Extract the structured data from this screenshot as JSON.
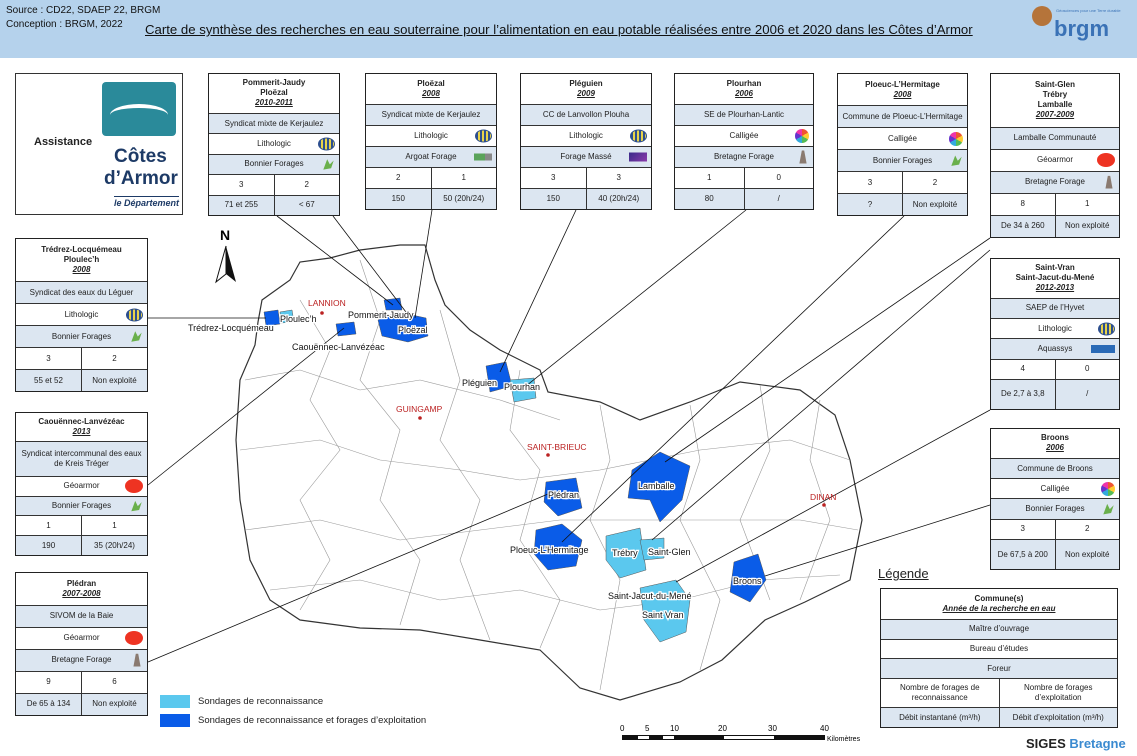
{
  "header": {
    "source": "Source : CD22, SDAEP 22, BRGM",
    "conception": "Conception : BRGM, 2022",
    "title": "Carte de synthèse des recherches en eau souterraine pour l’alimentation en eau potable réalisées entre 2006 et 2020 dans les Côtes d’Armor",
    "brgm_logo": "brgm",
    "brgm_tagline": "Géosciences pour une Terre durable"
  },
  "logo": {
    "assistance": "Assistance",
    "line1": "Côtes",
    "line2": "d’Armor",
    "line3": "le Département"
  },
  "boxes": [
    {
      "title": [
        "Pommerit-Jaudy",
        "Ploëzal"
      ],
      "year": "2010-2011",
      "owner": "Syndicat mixte de Kerjaulez",
      "consultant": "Lithologic",
      "consultant_icon": "globe",
      "driller": "Bonnier Forages",
      "driller_icon": "leaf",
      "recon": "3",
      "exploit": "2",
      "debit_inst": "71 et 255",
      "debit_exp": "< 67"
    },
    {
      "title": [
        "Ploëzal"
      ],
      "year": "2008",
      "owner": "Syndicat mixte de Kerjaulez",
      "consultant": "Lithologic",
      "consultant_icon": "globe",
      "driller": "Argoat Forage",
      "driller_icon": "truck",
      "recon": "2",
      "exploit": "1",
      "debit_inst": "150",
      "debit_exp": "50 (20h/24)"
    },
    {
      "title": [
        "Pléguien"
      ],
      "year": "2009",
      "owner": "CC de Lanvollon Plouha",
      "consultant": "Lithologic",
      "consultant_icon": "globe",
      "driller": "Forage Massé",
      "driller_icon": "masse",
      "recon": "3",
      "exploit": "3",
      "debit_inst": "150",
      "debit_exp": "40 (20h/24)"
    },
    {
      "title": [
        "Plourhan"
      ],
      "year": "2006",
      "owner": "SE de Plourhan-Lantic",
      "consultant": "Calligée",
      "consultant_icon": "wheel",
      "driller": "Bretagne Forage",
      "driller_icon": "rig",
      "recon": "1",
      "exploit": "0",
      "debit_inst": "80",
      "debit_exp": "/"
    },
    {
      "title": [
        "Ploeuc-L’Hermitage"
      ],
      "year": "2008",
      "owner": "Commune de Ploeuc-L’Hermitage",
      "consultant": "Calligée",
      "consultant_icon": "wheel",
      "driller": "Bonnier Forages",
      "driller_icon": "leaf",
      "recon": "3",
      "exploit": "2",
      "debit_inst": "?",
      "debit_exp": "Non exploité"
    },
    {
      "title": [
        "Saint-Glen",
        "Trébry",
        "Lamballe"
      ],
      "year": "2007-2009",
      "owner": "Lamballe Communauté",
      "consultant": "Géoarmor",
      "consultant_icon": "geo",
      "driller": "Bretagne Forage",
      "driller_icon": "rig",
      "recon": "8",
      "exploit": "1",
      "debit_inst": "De 34 à 260",
      "debit_exp": "Non exploité"
    },
    {
      "title": [
        "Trédrez-Locquémeau",
        "Ploulec’h"
      ],
      "year": "2008",
      "owner": "Syndicat des eaux du Léguer",
      "consultant": "Lithologic",
      "consultant_icon": "globe",
      "driller": "Bonnier Forages",
      "driller_icon": "leaf",
      "recon": "3",
      "exploit": "2",
      "debit_inst": "55 et 52",
      "debit_exp": "Non exploité"
    },
    {
      "title": [
        "Caouënnec-Lanvézéac"
      ],
      "year": "2013",
      "owner": "Syndicat intercommunal des eaux de Kreis Tréger",
      "consultant": "Géoarmor",
      "consultant_icon": "geo",
      "driller": "Bonnier Forages",
      "driller_icon": "leaf",
      "recon": "1",
      "exploit": "1",
      "debit_inst": "190",
      "debit_exp": "35 (20h/24)"
    },
    {
      "title": [
        "Plédran"
      ],
      "year": "2007-2008",
      "owner": "SIVOM de la Baie",
      "consultant": "Géoarmor",
      "consultant_icon": "geo",
      "driller": "Bretagne Forage",
      "driller_icon": "rig",
      "recon": "9",
      "exploit": "6",
      "debit_inst": "De 65 à 134",
      "debit_exp": "Non exploité"
    },
    {
      "title": [
        "Saint-Vran",
        "Saint-Jacut-du-Mené"
      ],
      "year": "2012-2013",
      "owner": "SAEP de l’Hyvet",
      "consultant": "Lithologic",
      "consultant_icon": "globe",
      "driller": "Aquassys",
      "driller_icon": "aqua",
      "recon": "4",
      "exploit": "0",
      "debit_inst": "De 2,7 à 3,8",
      "debit_exp": "/"
    },
    {
      "title": [
        "Broons"
      ],
      "year": "2006",
      "owner": "Commune de Broons",
      "consultant": "Calligée",
      "consultant_icon": "wheel",
      "driller": "Bonnier Forages",
      "driller_icon": "leaf",
      "recon": "3",
      "exploit": "2",
      "debit_inst": "De 67,5 à 200",
      "debit_exp": "Non exploité"
    }
  ],
  "legend": {
    "heading": "Légende",
    "title": "Commune(s)",
    "year": "Année de la recherche  en eau",
    "owner": "Maître d’ouvrage",
    "consultant": "Bureau d’études",
    "driller": "Foreur",
    "recon": "Nombre de forages  de reconnaissance",
    "exploit": "Nombre de forages d’exploitation",
    "debit_inst": "Débit instantané (m³/h)",
    "debit_exp": "Débit d’exploitation  (m³/h)"
  },
  "map": {
    "north": "N",
    "cities": [
      "LANNION",
      "GUINGAMP",
      "SAINT-BRIEUC",
      "DINAN"
    ],
    "communes": [
      "Trédrez-Locquémeau",
      "Ploulec’h",
      "Pommerit-Jaudy",
      "Ploëzal",
      "Caouënnec-Lanvézéac",
      "Pléguien",
      "Plourhan",
      "Lamballe",
      "Plédran",
      "Ploeuc-L’Hermitage",
      "Trébry",
      "Saint-Glen",
      "Saint-Jacut-du-Mené",
      "Saint Vran",
      "Broons"
    ],
    "legend": [
      {
        "label": "Sondages de reconnaissance",
        "color": "#5bc8ee"
      },
      {
        "label": "Sondages de reconnaissance et forages d’exploitation",
        "color": "#0a5ce8"
      }
    ],
    "scale": {
      "ticks": [
        "0",
        "5",
        "10",
        "20",
        "30",
        "40"
      ],
      "unit": "Kilomètres"
    },
    "colors": {
      "recon": "#5bc8ee",
      "exploit": "#0a5ce8",
      "city": "#b22222"
    }
  },
  "footer": {
    "siges": "SIGES",
    "bretagne": "Bretagne"
  }
}
